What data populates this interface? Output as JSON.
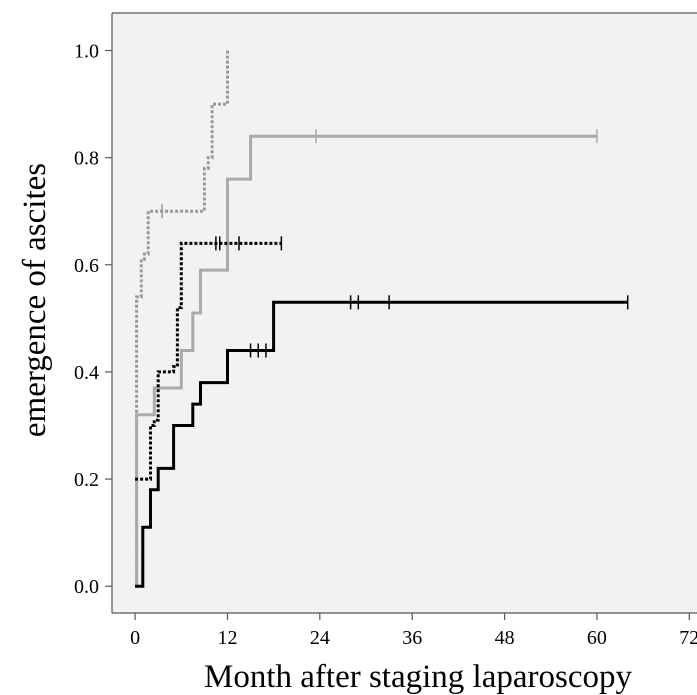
{
  "chart_data": {
    "type": "line",
    "step": true,
    "title": "",
    "xlabel": "Month after staging laparoscopy",
    "ylabel": "emergence of ascites",
    "xlim": [
      -3,
      73
    ],
    "ylim": [
      -0.05,
      1.07
    ],
    "x_ticks": [
      "0",
      "12",
      "24",
      "36",
      "48",
      "60",
      "72"
    ],
    "y_ticks": [
      "0.0",
      "0.2",
      "0.4",
      "0.6",
      "0.8",
      "1.0"
    ],
    "grid": false,
    "legend": "none",
    "background_color": "#f2f2f2",
    "series": [
      {
        "color": "#999999",
        "style": "dotted",
        "points": [
          [
            0,
            0
          ],
          [
            0.2,
            0.54
          ],
          [
            0.8,
            0.61
          ],
          [
            1.2,
            0.62
          ],
          [
            1.7,
            0.7
          ],
          [
            9,
            0.78
          ],
          [
            9.5,
            0.8
          ],
          [
            10,
            0.9
          ],
          [
            12,
            1.0
          ]
        ],
        "censored": [
          [
            3.5,
            0.7
          ]
        ]
      },
      {
        "color": "#aaaaaa",
        "style": "solid",
        "points": [
          [
            0,
            0
          ],
          [
            0.2,
            0.32
          ],
          [
            2.5,
            0.37
          ],
          [
            6,
            0.44
          ],
          [
            7.5,
            0.51
          ],
          [
            8.5,
            0.59
          ],
          [
            12,
            0.76
          ],
          [
            15,
            0.84
          ],
          [
            60,
            0.84
          ]
        ],
        "censored": [
          [
            23.5,
            0.84
          ],
          [
            60,
            0.84
          ]
        ]
      },
      {
        "color": "#000000",
        "style": "dotted",
        "points": [
          [
            0,
            0.2
          ],
          [
            2,
            0.3
          ],
          [
            2.5,
            0.31
          ],
          [
            3,
            0.4
          ],
          [
            5,
            0.41
          ],
          [
            5.5,
            0.52
          ],
          [
            6,
            0.64
          ],
          [
            19,
            0.64
          ]
        ],
        "censored": [
          [
            10.5,
            0.64
          ],
          [
            11,
            0.64
          ],
          [
            13.5,
            0.64
          ],
          [
            19,
            0.64
          ]
        ]
      },
      {
        "color": "#000000",
        "style": "solid",
        "points": [
          [
            0,
            0
          ],
          [
            1,
            0.11
          ],
          [
            2,
            0.18
          ],
          [
            3,
            0.22
          ],
          [
            5,
            0.3
          ],
          [
            7.5,
            0.34
          ],
          [
            8.5,
            0.38
          ],
          [
            10,
            0.38
          ],
          [
            12,
            0.44
          ],
          [
            18,
            0.53
          ],
          [
            64,
            0.53
          ]
        ],
        "censored": [
          [
            15,
            0.44
          ],
          [
            16,
            0.44
          ],
          [
            17,
            0.44
          ],
          [
            28,
            0.53
          ],
          [
            29,
            0.53
          ],
          [
            33,
            0.53
          ],
          [
            64,
            0.53
          ]
        ]
      }
    ]
  }
}
